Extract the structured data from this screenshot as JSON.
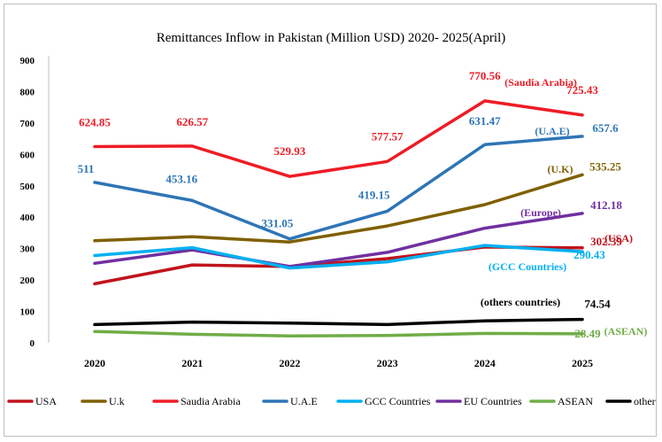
{
  "chart_data": {
    "type": "line",
    "title": "Remittances Inflow in Pakistan (Million USD) 2020- 2025(April)",
    "xlabel": "",
    "ylabel": "",
    "x": [
      "2020",
      "2021",
      "2022",
      "2023",
      "2024",
      "2025"
    ],
    "ylim": [
      0,
      900
    ],
    "yticks": [
      0,
      100,
      200,
      300,
      400,
      500,
      600,
      700,
      800,
      900
    ],
    "grid": false,
    "legend_position": "bottom",
    "series": [
      {
        "name": "USA",
        "color": "#c0141c",
        "values": [
          188,
          248,
          243,
          268,
          305,
          302.39
        ]
      },
      {
        "name": "U.k",
        "color": "#7f6000",
        "values": [
          325,
          338,
          321,
          372,
          440,
          535.25
        ]
      },
      {
        "name": "Saudia Arabia",
        "color": "#ee1c25",
        "values": [
          624.85,
          626.57,
          529.93,
          577.57,
          770.56,
          725.43
        ]
      },
      {
        "name": "U.A.E",
        "color": "#2e75b6",
        "values": [
          511,
          453.16,
          331.05,
          419.15,
          631.47,
          657.6
        ]
      },
      {
        "name": "GCC Countries",
        "color": "#00b0f0",
        "values": [
          278,
          303,
          238,
          258,
          310,
          290.43
        ]
      },
      {
        "name": "EU Countries",
        "color": "#7030a0",
        "values": [
          253,
          296,
          243,
          288,
          365,
          412.18
        ]
      },
      {
        "name": "ASEAN",
        "color": "#70ad47",
        "values": [
          36,
          27,
          22,
          23,
          30,
          28.49
        ]
      },
      {
        "name": "other countries",
        "color": "#000000",
        "values": [
          58,
          66,
          63,
          58,
          70,
          74.54
        ]
      }
    ],
    "data_labels": [
      {
        "series": "Saudia Arabia",
        "index": 0,
        "text": "624.85",
        "color": "#ee1c25"
      },
      {
        "series": "Saudia Arabia",
        "index": 1,
        "text": "626.57",
        "color": "#ee1c25"
      },
      {
        "series": "Saudia Arabia",
        "index": 2,
        "text": "529.93",
        "color": "#ee1c25"
      },
      {
        "series": "Saudia Arabia",
        "index": 3,
        "text": "577.57",
        "color": "#ee1c25"
      },
      {
        "series": "Saudia Arabia",
        "index": 4,
        "text": "770.56",
        "color": "#ee1c25"
      },
      {
        "series": "Saudia Arabia",
        "index": 5,
        "text": "725.43",
        "color": "#ee1c25"
      },
      {
        "series": "U.A.E",
        "index": 0,
        "text": "511",
        "color": "#2e75b6"
      },
      {
        "series": "U.A.E",
        "index": 1,
        "text": "453.16",
        "color": "#2e75b6"
      },
      {
        "series": "U.A.E",
        "index": 2,
        "text": "331.05",
        "color": "#2e75b6"
      },
      {
        "series": "U.A.E",
        "index": 3,
        "text": "419.15",
        "color": "#2e75b6"
      },
      {
        "series": "U.A.E",
        "index": 4,
        "text": "631.47",
        "color": "#2e75b6"
      },
      {
        "series": "U.A.E",
        "index": 5,
        "text": "657.6",
        "color": "#2e75b6"
      },
      {
        "series": "U.k",
        "index": 5,
        "text": "535.25",
        "color": "#7f6000"
      },
      {
        "series": "EU Countries",
        "index": 5,
        "text": "412.18",
        "color": "#7030a0"
      },
      {
        "series": "USA",
        "index": 5,
        "text": "302.39",
        "color": "#c0141c"
      },
      {
        "series": "GCC Countries",
        "index": 5,
        "text": "290.43",
        "color": "#00b0f0"
      },
      {
        "series": "other countries",
        "index": 5,
        "text": "74.54",
        "color": "#000000"
      },
      {
        "series": "ASEAN",
        "index": 5,
        "text": "28.49",
        "color": "#70ad47"
      }
    ],
    "annotations": [
      {
        "text": "(Saudia Arabia)",
        "color": "#ee1c25"
      },
      {
        "text": "(U.A.E)",
        "color": "#2e75b6"
      },
      {
        "text": "(U.K)",
        "color": "#7f6000"
      },
      {
        "text": "(Europe)",
        "color": "#7030a0"
      },
      {
        "text": "(USA)",
        "color": "#c0141c"
      },
      {
        "text": "(GCC Countries)",
        "color": "#00b0f0"
      },
      {
        "text": "(others countries)",
        "color": "#000000"
      },
      {
        "text": "(ASEAN)",
        "color": "#70ad47"
      }
    ]
  }
}
